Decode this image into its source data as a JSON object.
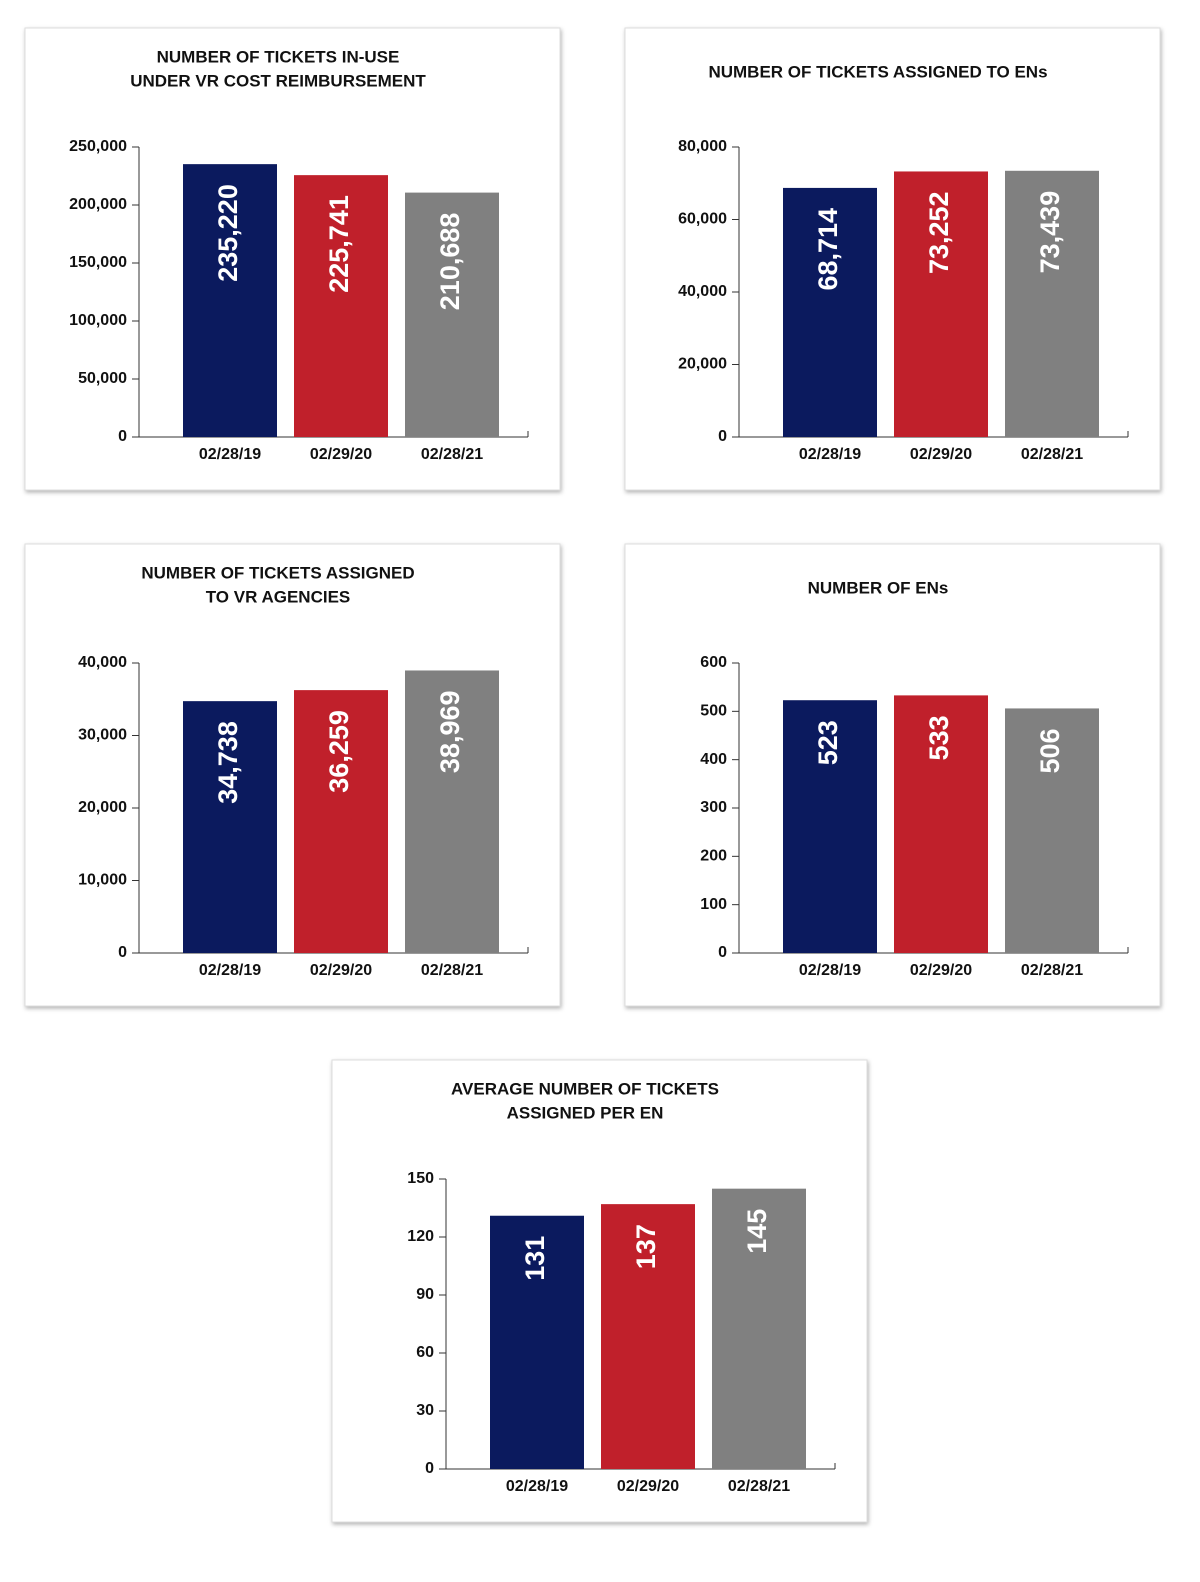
{
  "chart_data": [
    {
      "type": "bar",
      "title": [
        "NUMBER OF TICKETS IN-USE",
        "UNDER VR COST REIMBURSEMENT"
      ],
      "categories": [
        "02/28/19",
        "02/29/20",
        "02/28/21"
      ],
      "values": [
        235220,
        225741,
        210688
      ],
      "value_labels": [
        "235,220",
        "225,741",
        "210,688"
      ],
      "colors": [
        "#0b1a5e",
        "#c0202b",
        "#808080"
      ],
      "ylim": [
        0,
        250000
      ],
      "yticks": [
        0,
        {
          "value": 50000,
          "label": "50,000"
        },
        {
          "value": 100000,
          "label": "100,000"
        },
        {
          "value": 150000,
          "label": "150,000"
        },
        {
          "value": 200000,
          "label": "200,000"
        },
        {
          "value": 250000,
          "label": "250,000"
        }
      ]
    },
    {
      "type": "bar",
      "title": [
        "NUMBER OF TICKETS ASSIGNED TO ENs"
      ],
      "categories": [
        "02/28/19",
        "02/29/20",
        "02/28/21"
      ],
      "values": [
        68714,
        73252,
        73439
      ],
      "value_labels": [
        "68,714",
        "73,252",
        "73,439"
      ],
      "colors": [
        "#0b1a5e",
        "#c0202b",
        "#808080"
      ],
      "ylim": [
        0,
        80000
      ],
      "yticks": [
        0,
        {
          "value": 20000,
          "label": "20,000"
        },
        {
          "value": 40000,
          "label": "40,000"
        },
        {
          "value": 60000,
          "label": "60,000"
        },
        {
          "value": 80000,
          "label": "80,000"
        }
      ]
    },
    {
      "type": "bar",
      "title": [
        "NUMBER OF TICKETS ASSIGNED",
        "TO VR AGENCIES"
      ],
      "categories": [
        "02/28/19",
        "02/29/20",
        "02/28/21"
      ],
      "values": [
        34738,
        36259,
        38969
      ],
      "value_labels": [
        "34,738",
        "36,259",
        "38,969"
      ],
      "colors": [
        "#0b1a5e",
        "#c0202b",
        "#808080"
      ],
      "ylim": [
        0,
        40000
      ],
      "yticks": [
        0,
        {
          "value": 10000,
          "label": "10,000"
        },
        {
          "value": 20000,
          "label": "20,000"
        },
        {
          "value": 30000,
          "label": "30,000"
        },
        {
          "value": 40000,
          "label": "40,000"
        }
      ]
    },
    {
      "type": "bar",
      "title": [
        "NUMBER OF ENs"
      ],
      "categories": [
        "02/28/19",
        "02/29/20",
        "02/28/21"
      ],
      "values": [
        523,
        533,
        506
      ],
      "colors": [
        "#0b1a5e",
        "#c0202b",
        "#808080"
      ],
      "ylim": [
        0,
        600
      ],
      "yticks": [
        0,
        100,
        200,
        300,
        400,
        500,
        600
      ]
    },
    {
      "type": "bar",
      "title": [
        "AVERAGE NUMBER OF TICKETS",
        "ASSIGNED PER EN"
      ],
      "categories": [
        "02/28/19",
        "02/29/20",
        "02/28/21"
      ],
      "values": [
        131,
        137,
        145
      ],
      "colors": [
        "#0b1a5e",
        "#c0202b",
        "#808080"
      ],
      "ylim": [
        0,
        150
      ],
      "yticks": [
        0,
        30,
        60,
        90,
        120,
        150
      ]
    }
  ]
}
